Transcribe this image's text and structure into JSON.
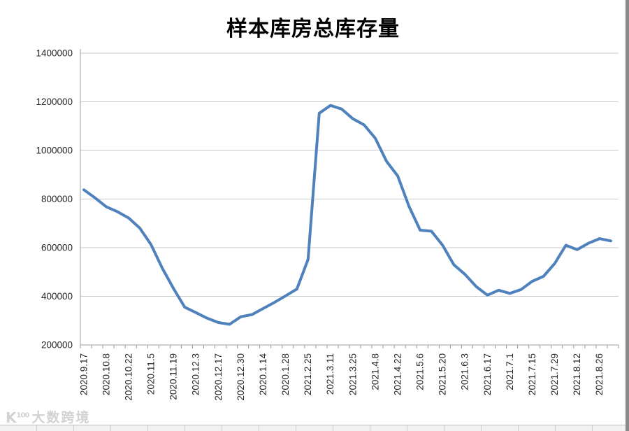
{
  "chart_data": {
    "type": "line",
    "title": "样本库房总库存量",
    "x_tick_labels": [
      "2020.9.17",
      "2020.10.8",
      "2020.10.22",
      "2020.11.5",
      "2020.11.19",
      "2020.12.3",
      "2020.12.17",
      "2020.12.30",
      "2020.1.14",
      "2020.1.28",
      "2021.2.25",
      "2021.3.11",
      "2021.3.25",
      "2021.4.8",
      "2021.4.22",
      "2021.5.6",
      "2021.5.20",
      "2021.6.3",
      "2021.6.17",
      "2021.7.1",
      "2021.7.15",
      "2021.7.29",
      "2021.8.12",
      "2021.8.26"
    ],
    "points_per_tick": 2,
    "values": [
      838000,
      805000,
      768000,
      748000,
      722000,
      680000,
      612000,
      515000,
      432000,
      355000,
      333000,
      310000,
      292000,
      285000,
      316000,
      325000,
      350000,
      375000,
      402000,
      430000,
      552000,
      1153000,
      1185000,
      1170000,
      1130000,
      1105000,
      1050000,
      955000,
      895000,
      770000,
      672000,
      668000,
      610000,
      530000,
      490000,
      440000,
      405000,
      425000,
      412000,
      428000,
      462000,
      482000,
      535000,
      610000,
      592000,
      618000,
      637000,
      628000
    ],
    "ylim": [
      200000,
      1400000
    ],
    "ytick_interval": 200000,
    "ytick_labels": [
      "200000",
      "400000",
      "600000",
      "800000",
      "1000000",
      "1200000",
      "1400000"
    ],
    "xlabel": "",
    "ylabel": "",
    "grid": "horizontal",
    "legend": "none",
    "line_color": "#4f81bd",
    "axis_color": "#9e9e9e",
    "grid_color": "#c9c9c9",
    "tick_label_color": "#262626"
  },
  "watermark": {
    "logo_main": "K",
    "logo_sup": "100",
    "text": "大数跨境"
  }
}
